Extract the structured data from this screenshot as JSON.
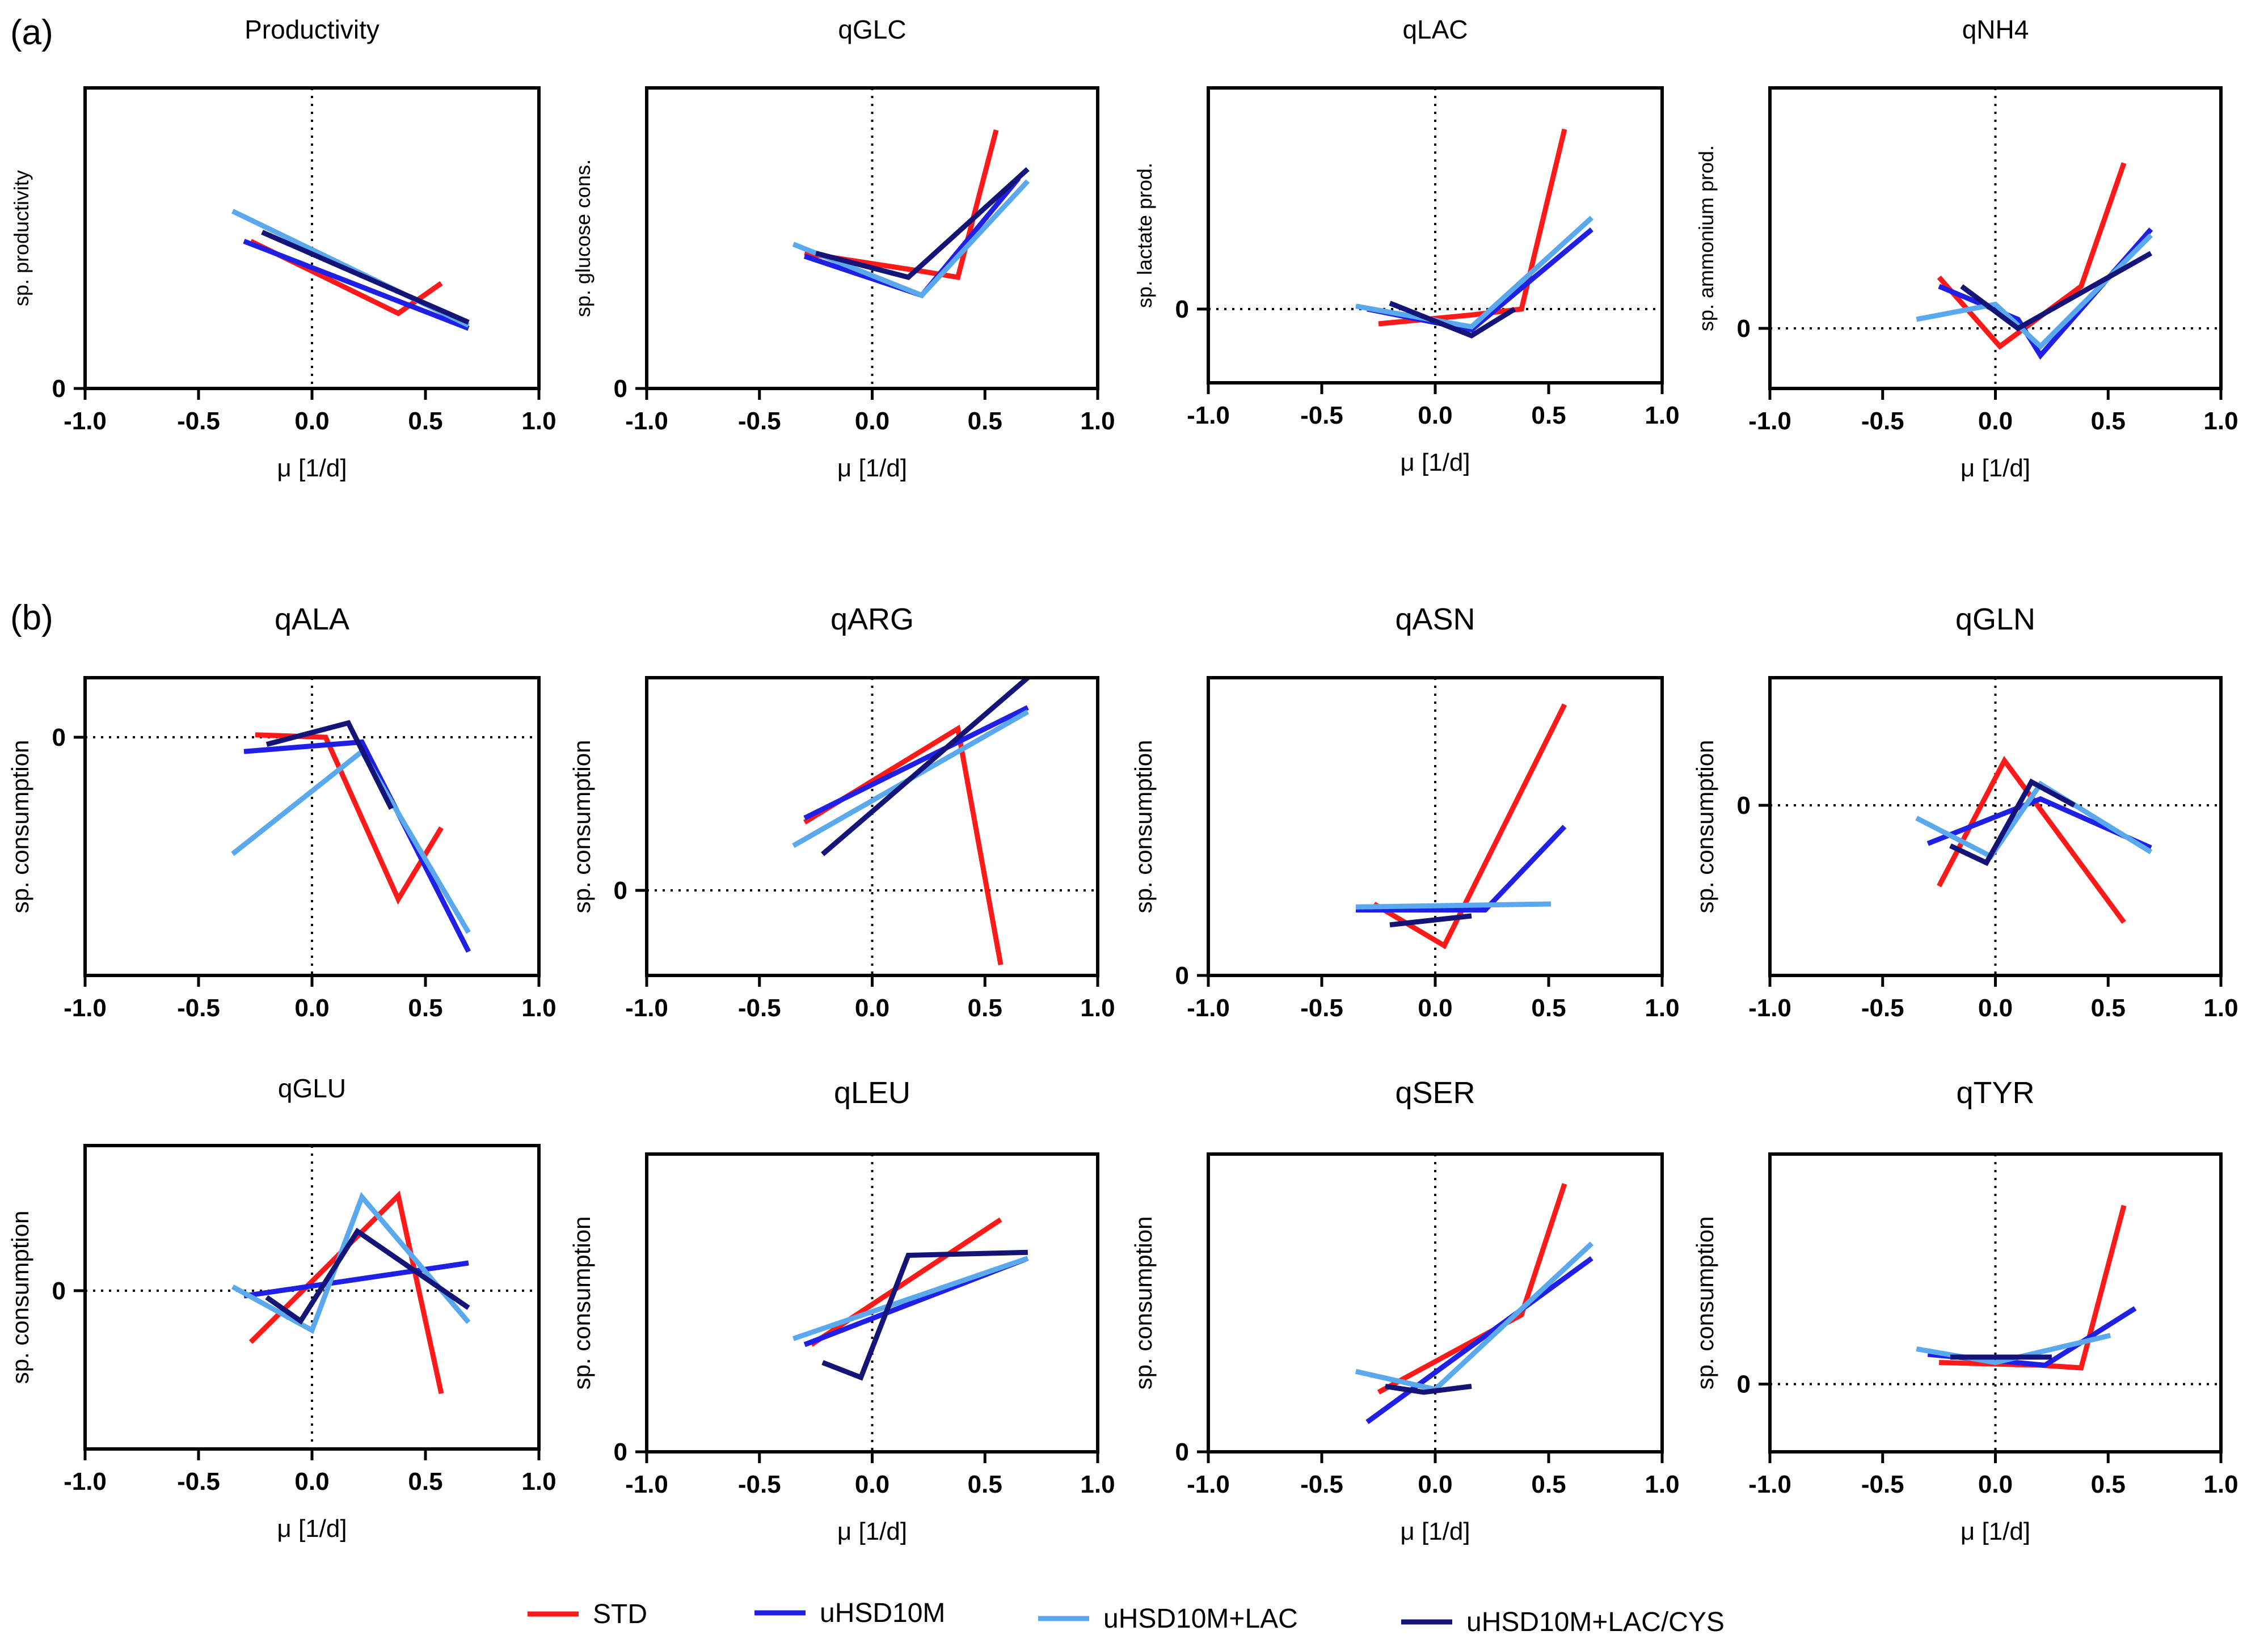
{
  "figure": {
    "label_a": "(a)",
    "label_b": "(b)",
    "series_colors": {
      "STD": "#ff1a1a",
      "uHSD10M": "#1f1fe6",
      "uHSD10M+LAC": "#5aa9ee",
      "uHSD10M+LAC/CYS": "#141478"
    },
    "legend": [
      "STD",
      "uHSD10M",
      "uHSD10M+LAC",
      "uHSD10M+LAC/CYS"
    ]
  },
  "chart_data": [
    {
      "type": "line",
      "title": "Productivity",
      "xlabel": "μ [1/d]",
      "ylabel": "sp. productivity",
      "xlim": [
        -1.0,
        1.0
      ],
      "ylim": [
        0,
        1.0
      ],
      "xticks": [
        "-1.0",
        "-0.5",
        "0.0",
        "0.5",
        "1.0"
      ],
      "yticks": [
        {
          "v": 0,
          "label": "0"
        }
      ],
      "zero_line": false,
      "series": [
        {
          "name": "STD",
          "points": [
            [
              -0.27,
              0.49
            ],
            [
              0.38,
              0.25
            ],
            [
              0.57,
              0.35
            ]
          ]
        },
        {
          "name": "uHSD10M",
          "points": [
            [
              -0.3,
              0.49
            ],
            [
              0.69,
              0.2
            ]
          ]
        },
        {
          "name": "uHSD10M+LAC",
          "points": [
            [
              -0.35,
              0.59
            ],
            [
              0.69,
              0.21
            ]
          ]
        },
        {
          "name": "uHSD10M+LAC/CYS",
          "points": [
            [
              -0.22,
              0.52
            ],
            [
              0.69,
              0.22
            ]
          ]
        }
      ]
    },
    {
      "type": "line",
      "title": "qGLC",
      "xlabel": "μ [1/d]",
      "ylabel": "sp. glucose cons.",
      "xlim": [
        -1.0,
        1.0
      ],
      "ylim": [
        0,
        1.0
      ],
      "xticks": [
        "-1.0",
        "-0.5",
        "0.0",
        "0.5",
        "1.0"
      ],
      "yticks": [
        {
          "v": 0,
          "label": "0"
        }
      ],
      "zero_line": false,
      "series": [
        {
          "name": "STD",
          "points": [
            [
              -0.3,
              0.45
            ],
            [
              0.22,
              0.39
            ],
            [
              0.38,
              0.37
            ],
            [
              0.55,
              0.86
            ]
          ]
        },
        {
          "name": "uHSD10M",
          "points": [
            [
              -0.3,
              0.44
            ],
            [
              0.22,
              0.31
            ],
            [
              0.65,
              0.7
            ]
          ]
        },
        {
          "name": "uHSD10M+LAC",
          "points": [
            [
              -0.35,
              0.48
            ],
            [
              0.22,
              0.31
            ],
            [
              0.69,
              0.69
            ]
          ]
        },
        {
          "name": "uHSD10M+LAC/CYS",
          "points": [
            [
              -0.25,
              0.45
            ],
            [
              0.16,
              0.37
            ],
            [
              0.69,
              0.73
            ]
          ]
        }
      ]
    },
    {
      "type": "line",
      "title": "qLAC",
      "xlabel": "μ [1/d]",
      "ylabel": "sp. lactate prod.",
      "xlim": [
        -1.0,
        1.0
      ],
      "ylim": [
        -0.25,
        0.75
      ],
      "xticks": [
        "-1.0",
        "-0.5",
        "0.0",
        "0.5",
        "1.0"
      ],
      "yticks": [
        {
          "v": 0,
          "label": "0"
        }
      ],
      "zero_line": true,
      "series": [
        {
          "name": "STD",
          "points": [
            [
              -0.25,
              -0.05
            ],
            [
              0.16,
              -0.02
            ],
            [
              0.38,
              0.0
            ],
            [
              0.57,
              0.61
            ]
          ]
        },
        {
          "name": "uHSD10M",
          "points": [
            [
              -0.3,
              0.0
            ],
            [
              0.16,
              -0.07
            ],
            [
              0.69,
              0.27
            ]
          ]
        },
        {
          "name": "uHSD10M+LAC",
          "points": [
            [
              -0.35,
              0.01
            ],
            [
              0.16,
              -0.06
            ],
            [
              0.69,
              0.31
            ]
          ]
        },
        {
          "name": "uHSD10M+LAC/CYS",
          "points": [
            [
              -0.2,
              0.02
            ],
            [
              0.16,
              -0.09
            ],
            [
              0.35,
              0.0
            ]
          ]
        }
      ]
    },
    {
      "type": "line",
      "title": "qNH4",
      "xlabel": "μ [1/d]",
      "ylabel": "sp. ammonium prod.",
      "xlim": [
        -1.0,
        1.0
      ],
      "ylim": [
        -0.2,
        0.8
      ],
      "xticks": [
        "-1.0",
        "-0.5",
        "0.0",
        "0.5",
        "1.0"
      ],
      "yticks": [
        {
          "v": 0,
          "label": "0"
        }
      ],
      "zero_line": true,
      "series": [
        {
          "name": "STD",
          "points": [
            [
              -0.25,
              0.17
            ],
            [
              0.02,
              -0.06
            ],
            [
              0.38,
              0.14
            ],
            [
              0.57,
              0.55
            ]
          ]
        },
        {
          "name": "uHSD10M",
          "points": [
            [
              -0.25,
              0.14
            ],
            [
              0.1,
              0.03
            ],
            [
              0.2,
              -0.09
            ],
            [
              0.69,
              0.33
            ]
          ]
        },
        {
          "name": "uHSD10M+LAC",
          "points": [
            [
              -0.35,
              0.03
            ],
            [
              0.0,
              0.08
            ],
            [
              0.2,
              -0.06
            ],
            [
              0.69,
              0.31
            ]
          ]
        },
        {
          "name": "uHSD10M+LAC/CYS",
          "points": [
            [
              -0.15,
              0.14
            ],
            [
              0.1,
              0.0
            ],
            [
              0.69,
              0.25
            ]
          ]
        }
      ]
    },
    {
      "type": "line",
      "title": "qALA",
      "xlabel": "",
      "ylabel": "sp. consumption",
      "xlim": [
        -1.0,
        1.0
      ],
      "ylim": [
        -1.0,
        0.25
      ],
      "xticks": [
        "-1.0",
        "-0.5",
        "0.0",
        "0.5",
        "1.0"
      ],
      "yticks": [
        {
          "v": 0,
          "label": "0"
        }
      ],
      "zero_line": true,
      "series": [
        {
          "name": "STD",
          "points": [
            [
              -0.25,
              0.01
            ],
            [
              0.06,
              0.0
            ],
            [
              0.38,
              -0.68
            ],
            [
              0.57,
              -0.38
            ]
          ]
        },
        {
          "name": "uHSD10M",
          "points": [
            [
              -0.3,
              -0.06
            ],
            [
              0.22,
              -0.02
            ],
            [
              0.69,
              -0.9
            ]
          ]
        },
        {
          "name": "uHSD10M+LAC",
          "points": [
            [
              -0.35,
              -0.49
            ],
            [
              0.22,
              -0.06
            ],
            [
              0.69,
              -0.82
            ]
          ]
        },
        {
          "name": "uHSD10M+LAC/CYS",
          "points": [
            [
              -0.2,
              -0.03
            ],
            [
              0.16,
              0.06
            ],
            [
              0.35,
              -0.3
            ]
          ]
        }
      ]
    },
    {
      "type": "line",
      "title": "qARG",
      "xlabel": "",
      "ylabel": "sp. consumption",
      "xlim": [
        -1.0,
        1.0
      ],
      "ylim": [
        -0.4,
        1.0
      ],
      "xticks": [
        "-1.0",
        "-0.5",
        "0.0",
        "0.5",
        "1.0"
      ],
      "yticks": [
        {
          "v": 0,
          "label": "0"
        }
      ],
      "zero_line": true,
      "series": [
        {
          "name": "STD",
          "points": [
            [
              -0.3,
              0.32
            ],
            [
              0.38,
              0.76
            ],
            [
              0.57,
              -0.35
            ]
          ]
        },
        {
          "name": "uHSD10M",
          "points": [
            [
              -0.3,
              0.34
            ],
            [
              0.69,
              0.86
            ]
          ]
        },
        {
          "name": "uHSD10M+LAC",
          "points": [
            [
              -0.35,
              0.21
            ],
            [
              0.69,
              0.84
            ]
          ]
        },
        {
          "name": "uHSD10M+LAC/CYS",
          "points": [
            [
              -0.22,
              0.17
            ],
            [
              0.69,
              1.0
            ]
          ]
        }
      ]
    },
    {
      "type": "line",
      "title": "qASN",
      "xlabel": "",
      "ylabel": "sp. consumption",
      "xlim": [
        -1.0,
        1.0
      ],
      "ylim": [
        0,
        1.0
      ],
      "xticks": [
        "-1.0",
        "-0.5",
        "0.0",
        "0.5",
        "1.0"
      ],
      "yticks": [
        {
          "v": 0,
          "label": "0"
        }
      ],
      "zero_line": false,
      "series": [
        {
          "name": "STD",
          "points": [
            [
              -0.27,
              0.24
            ],
            [
              0.04,
              0.1
            ],
            [
              0.57,
              0.91
            ]
          ]
        },
        {
          "name": "uHSD10M",
          "points": [
            [
              -0.35,
              0.22
            ],
            [
              0.22,
              0.22
            ],
            [
              0.57,
              0.5
            ]
          ]
        },
        {
          "name": "uHSD10M+LAC",
          "points": [
            [
              -0.35,
              0.23
            ],
            [
              0.51,
              0.24
            ]
          ]
        },
        {
          "name": "uHSD10M+LAC/CYS",
          "points": [
            [
              -0.2,
              0.17
            ],
            [
              0.16,
              0.2
            ]
          ]
        }
      ]
    },
    {
      "type": "line",
      "title": "qGLN",
      "xlabel": "",
      "ylabel": "sp. consumption",
      "xlim": [
        -1.0,
        1.0
      ],
      "ylim": [
        -0.8,
        0.6
      ],
      "xticks": [
        "-1.0",
        "-0.5",
        "0.0",
        "0.5",
        "1.0"
      ],
      "yticks": [
        {
          "v": 0,
          "label": "0"
        }
      ],
      "zero_line": true,
      "series": [
        {
          "name": "STD",
          "points": [
            [
              -0.25,
              -0.38
            ],
            [
              0.04,
              0.21
            ],
            [
              0.57,
              -0.55
            ]
          ]
        },
        {
          "name": "uHSD10M",
          "points": [
            [
              -0.3,
              -0.18
            ],
            [
              0.2,
              0.03
            ],
            [
              0.69,
              -0.2
            ]
          ]
        },
        {
          "name": "uHSD10M+LAC",
          "points": [
            [
              -0.35,
              -0.06
            ],
            [
              -0.02,
              -0.24
            ],
            [
              0.2,
              0.1
            ],
            [
              0.69,
              -0.22
            ]
          ]
        },
        {
          "name": "uHSD10M+LAC/CYS",
          "points": [
            [
              -0.2,
              -0.19
            ],
            [
              -0.04,
              -0.27
            ],
            [
              0.16,
              0.11
            ],
            [
              0.35,
              0.0
            ]
          ]
        }
      ]
    },
    {
      "type": "line",
      "title": "qGLU",
      "xlabel": "μ [1/d]",
      "ylabel": "sp. consumption",
      "xlim": [
        -1.0,
        1.0
      ],
      "ylim": [
        -1.2,
        1.1
      ],
      "xticks": [
        "-1.0",
        "-0.5",
        "0.0",
        "0.5",
        "1.0"
      ],
      "yticks": [
        {
          "v": 0,
          "label": "0"
        }
      ],
      "zero_line": true,
      "series": [
        {
          "name": "STD",
          "points": [
            [
              -0.27,
              -0.39
            ],
            [
              0.38,
              0.72
            ],
            [
              0.57,
              -0.78
            ]
          ]
        },
        {
          "name": "uHSD10M",
          "points": [
            [
              -0.3,
              -0.04
            ],
            [
              0.69,
              0.21
            ]
          ]
        },
        {
          "name": "uHSD10M+LAC",
          "points": [
            [
              -0.35,
              0.03
            ],
            [
              0.0,
              -0.3
            ],
            [
              0.22,
              0.71
            ],
            [
              0.69,
              -0.24
            ]
          ]
        },
        {
          "name": "uHSD10M+LAC/CYS",
          "points": [
            [
              -0.2,
              -0.05
            ],
            [
              -0.05,
              -0.23
            ],
            [
              0.2,
              0.45
            ],
            [
              0.69,
              -0.13
            ]
          ]
        }
      ]
    },
    {
      "type": "line",
      "title": "qLEU",
      "xlabel": "μ [1/d]",
      "ylabel": "sp. consumption",
      "xlim": [
        -1.0,
        1.0
      ],
      "ylim": [
        0,
        1.0
      ],
      "xticks": [
        "-1.0",
        "-0.5",
        "0.0",
        "0.5",
        "1.0"
      ],
      "yticks": [
        {
          "v": 0,
          "label": "0"
        }
      ],
      "zero_line": false,
      "series": [
        {
          "name": "STD",
          "points": [
            [
              -0.27,
              0.36
            ],
            [
              0.57,
              0.78
            ]
          ]
        },
        {
          "name": "uHSD10M",
          "points": [
            [
              -0.3,
              0.36
            ],
            [
              0.69,
              0.65
            ]
          ]
        },
        {
          "name": "uHSD10M+LAC",
          "points": [
            [
              -0.35,
              0.38
            ],
            [
              0.69,
              0.65
            ]
          ]
        },
        {
          "name": "uHSD10M+LAC/CYS",
          "points": [
            [
              -0.22,
              0.3
            ],
            [
              -0.05,
              0.25
            ],
            [
              0.16,
              0.66
            ],
            [
              0.69,
              0.67
            ]
          ]
        }
      ]
    },
    {
      "type": "line",
      "title": "qSER",
      "xlabel": "μ [1/d]",
      "ylabel": "sp. consumption",
      "xlim": [
        -1.0,
        1.0
      ],
      "ylim": [
        0,
        1.0
      ],
      "xticks": [
        "-1.0",
        "-0.5",
        "0.0",
        "0.5",
        "1.0"
      ],
      "yticks": [
        {
          "v": 0,
          "label": "0"
        }
      ],
      "zero_line": false,
      "series": [
        {
          "name": "STD",
          "points": [
            [
              -0.25,
              0.2
            ],
            [
              0.38,
              0.46
            ],
            [
              0.57,
              0.9
            ]
          ]
        },
        {
          "name": "uHSD10M",
          "points": [
            [
              -0.3,
              0.1
            ],
            [
              0.69,
              0.65
            ]
          ]
        },
        {
          "name": "uHSD10M+LAC",
          "points": [
            [
              -0.35,
              0.27
            ],
            [
              0.0,
              0.21
            ],
            [
              0.69,
              0.7
            ]
          ]
        },
        {
          "name": "uHSD10M+LAC/CYS",
          "points": [
            [
              -0.22,
              0.22
            ],
            [
              -0.05,
              0.2
            ],
            [
              0.16,
              0.22
            ]
          ]
        }
      ]
    },
    {
      "type": "line",
      "title": "qTYR",
      "xlabel": "μ [1/d]",
      "ylabel": "sp. consumption",
      "xlim": [
        -1.0,
        1.0
      ],
      "ylim": [
        -0.25,
        0.85
      ],
      "xticks": [
        "-1.0",
        "-0.5",
        "0.0",
        "0.5",
        "1.0"
      ],
      "yticks": [
        {
          "v": 0,
          "label": "0"
        }
      ],
      "zero_line": true,
      "series": [
        {
          "name": "STD",
          "points": [
            [
              -0.25,
              0.08
            ],
            [
              0.2,
              0.07
            ],
            [
              0.38,
              0.06
            ],
            [
              0.57,
              0.66
            ]
          ]
        },
        {
          "name": "uHSD10M",
          "points": [
            [
              -0.3,
              0.11
            ],
            [
              0.22,
              0.07
            ],
            [
              0.62,
              0.28
            ]
          ]
        },
        {
          "name": "uHSD10M+LAC",
          "points": [
            [
              -0.35,
              0.13
            ],
            [
              0.0,
              0.08
            ],
            [
              0.51,
              0.18
            ]
          ]
        },
        {
          "name": "uHSD10M+LAC/CYS",
          "points": [
            [
              -0.2,
              0.1
            ],
            [
              0.25,
              0.1
            ]
          ]
        }
      ]
    }
  ]
}
